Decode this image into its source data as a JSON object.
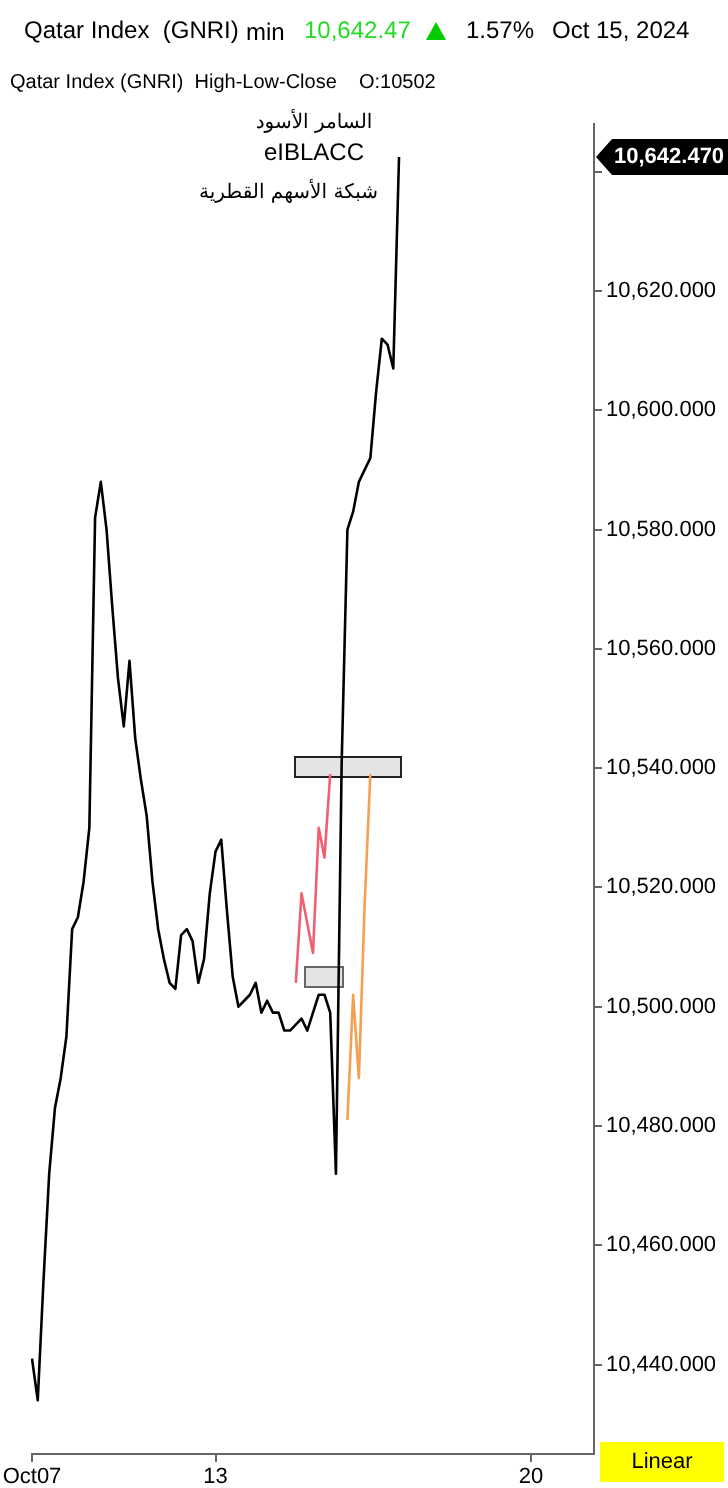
{
  "chart_data": {
    "type": "line",
    "title": "Qatar Index  (GNRI)",
    "subtitle": "Qatar Index (GNRI)  High-Low-Close    O:10502",
    "annotations": [
      "min",
      "10,642.47",
      "1.57%",
      "Oct 15, 2024",
      "السامر الأسود",
      "eIBLACC",
      "شبكة الأسهم القطرية",
      "Linear",
      "10,642.470"
    ],
    "categories": [
      "Oct07",
      null,
      null,
      null,
      null,
      null,
      null,
      null,
      null,
      null,
      null,
      null,
      null,
      null,
      null,
      null,
      null,
      null,
      null,
      null,
      null,
      null,
      null,
      null,
      null,
      null,
      null,
      null,
      null,
      null,
      null,
      null,
      "13",
      null,
      null,
      null,
      null,
      null,
      null,
      null,
      null,
      null,
      null,
      null,
      null,
      null,
      null,
      null,
      null,
      null,
      null,
      null,
      null,
      null,
      null,
      null,
      null,
      null,
      null,
      null,
      null,
      null,
      null,
      null,
      null,
      null,
      null,
      null,
      null,
      null,
      null,
      null,
      null,
      null,
      null,
      null,
      null,
      null,
      null,
      null,
      null,
      null,
      null,
      null,
      null,
      null,
      null,
      "20",
      null,
      null,
      null,
      null,
      null,
      null,
      null,
      null,
      null,
      null,
      null
    ],
    "ylim": [
      10425,
      10648
    ],
    "yticks": [
      {
        "value": 10440,
        "label": "10,440.000"
      },
      {
        "value": 10460,
        "label": "10,460.000"
      },
      {
        "value": 10480,
        "label": "10,480.000"
      },
      {
        "value": 10500,
        "label": "10,500.000"
      },
      {
        "value": 10520,
        "label": "10,520.000"
      },
      {
        "value": 10540,
        "label": "10,540.000"
      },
      {
        "value": 10560,
        "label": "10,560.000"
      },
      {
        "value": 10580,
        "label": "10,580.000"
      },
      {
        "value": 10600,
        "label": "10,600.000"
      },
      {
        "value": 10620,
        "label": "10,620.000"
      },
      {
        "value": 10640,
        "label": null
      }
    ],
    "grid": false,
    "legend": false,
    "marker": "none",
    "series": [
      {
        "color": "#000000",
        "values": [
          10441,
          10434,
          10454,
          10472,
          10483,
          10488,
          10495,
          10513,
          10515,
          10521,
          10530,
          10582,
          10588,
          10580,
          10567,
          10555,
          10547,
          10558,
          10545,
          10538,
          10532,
          10521,
          10513,
          10508,
          10504,
          10503,
          10512,
          10513,
          10511,
          10504,
          10508,
          10519,
          10526,
          10528,
          10516,
          10505,
          10500,
          10501,
          10502,
          10504,
          10499,
          10501,
          10499,
          10499,
          10496,
          10496,
          10497,
          10498,
          10496,
          10499,
          10502,
          10502,
          10499,
          10472,
          10541,
          10580,
          10583,
          10588,
          10590,
          10592,
          10603,
          10612,
          10611,
          10607,
          10642.47,
          null,
          null,
          null,
          null,
          null,
          null,
          null,
          null,
          null,
          null,
          null,
          null,
          null,
          null,
          null,
          null,
          null,
          null,
          null,
          null,
          null,
          null,
          null,
          null,
          null,
          null,
          null,
          null,
          null,
          null,
          null,
          null,
          null,
          null
        ]
      },
      {
        "color": "#f06070",
        "values": [
          null,
          null,
          null,
          null,
          null,
          null,
          null,
          null,
          null,
          null,
          null,
          null,
          null,
          null,
          null,
          null,
          null,
          null,
          null,
          null,
          null,
          null,
          null,
          null,
          null,
          null,
          null,
          null,
          null,
          null,
          null,
          null,
          null,
          null,
          null,
          null,
          null,
          null,
          null,
          null,
          null,
          null,
          null,
          null,
          null,
          null,
          10504,
          10519,
          null,
          10509,
          10530,
          10525,
          10539,
          null,
          null,
          null,
          null,
          null,
          null,
          null,
          null,
          null,
          null,
          null,
          null,
          null,
          null,
          null,
          null,
          null,
          null,
          null,
          null,
          null,
          null,
          null,
          null,
          null,
          null,
          null,
          null,
          null,
          null,
          null,
          null,
          null,
          null,
          null,
          null,
          null,
          null,
          null,
          null,
          null,
          null,
          null,
          null,
          null,
          null
        ]
      },
      {
        "color": "#f5a050",
        "values": [
          null,
          null,
          null,
          null,
          null,
          null,
          null,
          null,
          null,
          null,
          null,
          null,
          null,
          null,
          null,
          null,
          null,
          null,
          null,
          null,
          null,
          null,
          null,
          null,
          null,
          null,
          null,
          null,
          null,
          null,
          null,
          null,
          null,
          null,
          null,
          null,
          null,
          null,
          null,
          null,
          null,
          null,
          null,
          null,
          null,
          null,
          null,
          null,
          null,
          null,
          null,
          null,
          null,
          null,
          null,
          10481,
          10502,
          10488,
          10517,
          10539,
          null,
          null,
          null,
          null,
          null,
          null,
          null,
          null,
          null,
          null,
          null,
          null,
          null,
          null,
          null,
          null,
          null,
          null,
          null,
          null,
          null,
          null,
          null,
          null,
          null,
          null,
          null,
          null,
          null,
          null,
          null,
          null,
          null,
          null,
          null,
          null,
          null,
          null,
          null
        ]
      }
    ]
  }
}
